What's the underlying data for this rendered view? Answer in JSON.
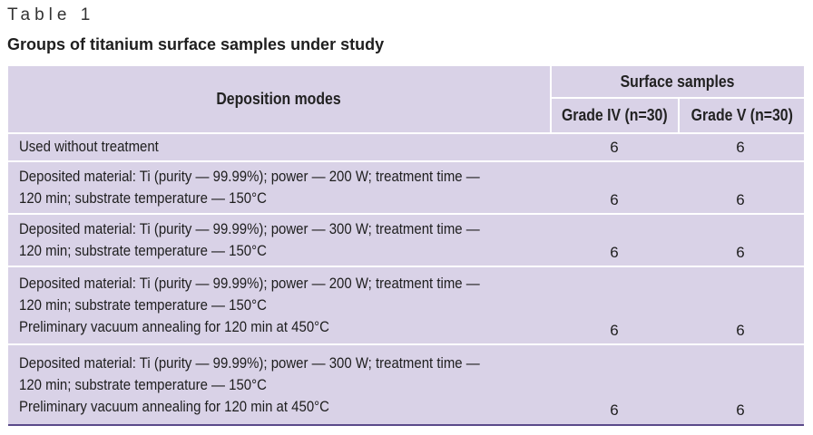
{
  "label": "Table 1",
  "title": "Groups of titanium surface samples under study",
  "header": {
    "col1": "Deposition modes",
    "group": "Surface samples",
    "col2": "Grade IV (n=30)",
    "col3": "Grade V (n=30)"
  },
  "rows": [
    {
      "lines": [
        "Used without treatment"
      ],
      "grade_iv": "6",
      "grade_v": "6"
    },
    {
      "lines": [
        "Deposited material: Ti (purity — 99.99%); power — 200 W; treatment time —",
        "120 min; substrate temperature — 150°C"
      ],
      "grade_iv": "6",
      "grade_v": "6"
    },
    {
      "lines": [
        "Deposited material: Ti (purity — 99.99%); power — 300 W; treatment time —",
        "120 min; substrate temperature — 150°C"
      ],
      "grade_iv": "6",
      "grade_v": "6"
    },
    {
      "lines": [
        "Deposited material: Ti (purity — 99.99%); power — 200 W; treatment time —",
        "120 min; substrate temperature — 150°C",
        "Preliminary vacuum annealing for 120 min at 450°C"
      ],
      "grade_iv": "6",
      "grade_v": "6"
    },
    {
      "lines": [
        "Deposited material: Ti (purity — 99.99%); power — 300 W;  treatment time —",
        "120 min; substrate temperature — 150°C",
        "Preliminary vacuum annealing for 120 min at 450°C"
      ],
      "grade_iv": "6",
      "grade_v": "6"
    }
  ],
  "colors": {
    "table_bg": "#d9d2e7",
    "rule": "#ffffff",
    "bottom_border": "#5a4a8a"
  }
}
